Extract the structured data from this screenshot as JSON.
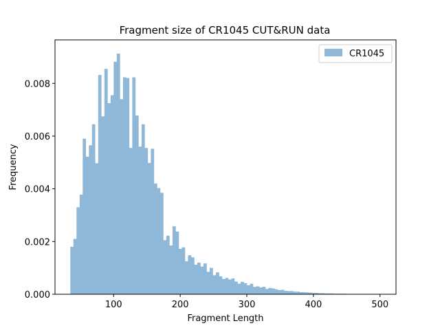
{
  "chart_data": {
    "type": "bar",
    "title": "Fragment size of CR1045 CUT&RUN data",
    "xlabel": "Fragment Length",
    "ylabel": "Frequency",
    "xlim": [
      12,
      524
    ],
    "ylim": [
      0,
      0.00965
    ],
    "xticks": [
      100,
      200,
      300,
      400,
      500
    ],
    "xtick_labels": [
      "100",
      "200",
      "300",
      "400",
      "500"
    ],
    "yticks": [
      0.0,
      0.002,
      0.004,
      0.006,
      0.008
    ],
    "ytick_labels": [
      "0.000",
      "0.002",
      "0.004",
      "0.006",
      "0.008"
    ],
    "grid": false,
    "legend": {
      "placement": "top-right",
      "entries": [
        "CR1045"
      ]
    },
    "bin_start": 35,
    "bin_width": 4.65,
    "series": [
      {
        "name": "CR1045",
        "color": "#8fb8d8",
        "values": [
          0.0018,
          0.0021,
          0.0033,
          0.00378,
          0.0059,
          0.00522,
          0.00565,
          0.00645,
          0.00497,
          0.00832,
          0.00675,
          0.00855,
          0.00725,
          0.00755,
          0.00882,
          0.00913,
          0.0074,
          0.00823,
          0.0082,
          0.00555,
          0.00823,
          0.00678,
          0.0056,
          0.00645,
          0.00555,
          0.00498,
          0.00552,
          0.0042,
          0.00403,
          0.00385,
          0.00205,
          0.00222,
          0.00185,
          0.00258,
          0.00238,
          0.00172,
          0.00178,
          0.00125,
          0.00148,
          0.0014,
          0.00112,
          0.0012,
          0.00105,
          0.00117,
          0.00085,
          0.001,
          0.00072,
          0.00083,
          0.00068,
          0.00058,
          0.00062,
          0.00056,
          0.0006,
          0.00048,
          0.0004,
          0.00047,
          0.00042,
          0.00034,
          0.0004,
          0.00028,
          0.0003,
          0.00026,
          0.00028,
          0.0002,
          0.00024,
          0.00022,
          0.00019,
          0.00016,
          0.00017,
          0.00013,
          0.00012,
          0.00012,
          0.0001,
          0.0001,
          8e-05,
          8e-05,
          7e-05,
          6e-05,
          5e-05,
          5e-05,
          4e-05,
          4e-05,
          3e-05,
          3e-05,
          3e-05,
          2e-05,
          2e-05,
          2e-05,
          2e-05,
          1e-05,
          1e-05,
          1e-05,
          1e-05,
          1e-05,
          1e-05,
          1e-05,
          1e-05,
          1e-05,
          1e-05,
          1e-05
        ]
      }
    ]
  }
}
